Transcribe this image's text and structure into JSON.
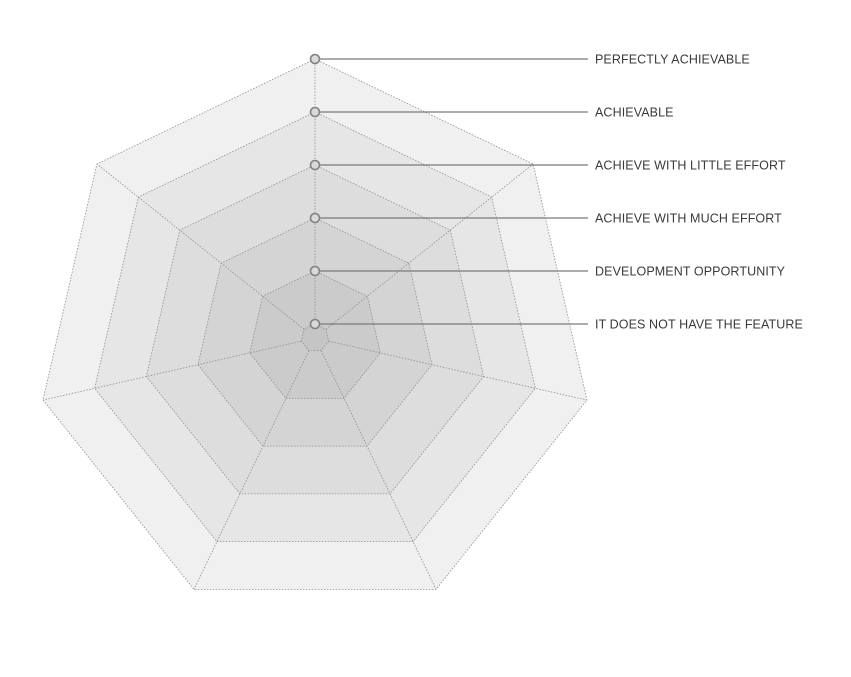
{
  "diagram": {
    "type": "heptagon-level-scale",
    "sides": 7,
    "levels": [
      {
        "label": "IT DOES NOT HAVE THE FEATURE",
        "fill": "#c4c5c4"
      },
      {
        "label": "DEVELOPMENT OPPORTUNITY",
        "fill": "#cacbca"
      },
      {
        "label": "ACHIEVE WITH MUCH EFFORT",
        "fill": "#d3d4d3"
      },
      {
        "label": "ACHIEVE WITH LITTLE EFFORT",
        "fill": "#dcdddc"
      },
      {
        "label": "ACHIEVABLE",
        "fill": "#e5e6e5"
      },
      {
        "label": "PERFECTLY ACHIEVABLE",
        "fill": "#eff0ef"
      }
    ],
    "colors": {
      "outline": "#8e8e8e",
      "leader_line": "#7a7a7a",
      "marker_fill": "#d9d9d9",
      "marker_stroke": "#808080",
      "label_text": "#3a3a3a"
    }
  }
}
